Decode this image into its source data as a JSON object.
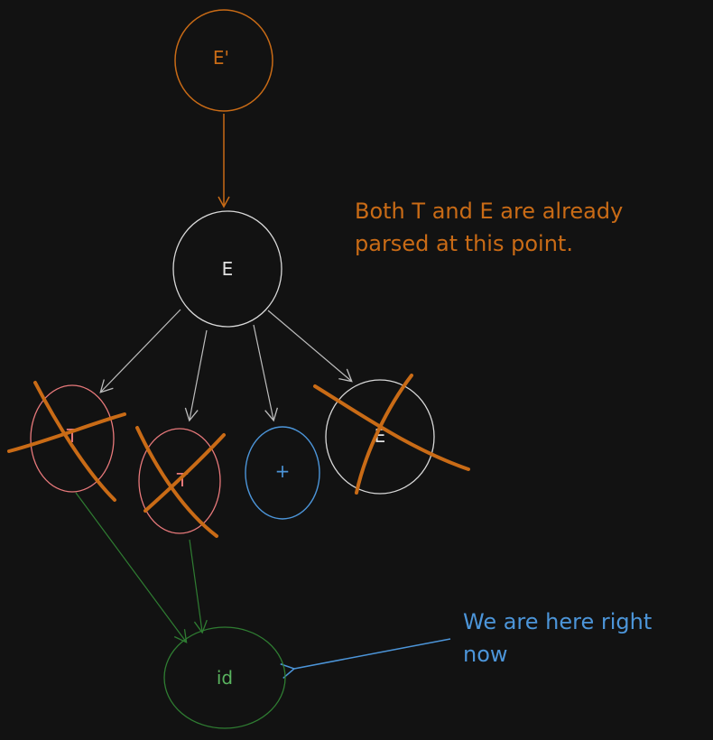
{
  "colors": {
    "background": "#121212",
    "orange": "#c96b16",
    "white": "#d9d9d9",
    "red": "#e8797b",
    "blue": "#4c95d9",
    "green": "#2f7d32",
    "green_text": "#59b35f"
  },
  "nodes": {
    "e_prime": {
      "label": "E'"
    },
    "e": {
      "label": "E"
    },
    "t1": {
      "label": "T"
    },
    "t2": {
      "label": "T"
    },
    "plus": {
      "label": "+"
    },
    "e_child": {
      "label": "E"
    },
    "id": {
      "label": "id"
    }
  },
  "notes": {
    "parsed": "Both T and E are already\nparsed at this point.",
    "here": "We are here right\nnow"
  }
}
